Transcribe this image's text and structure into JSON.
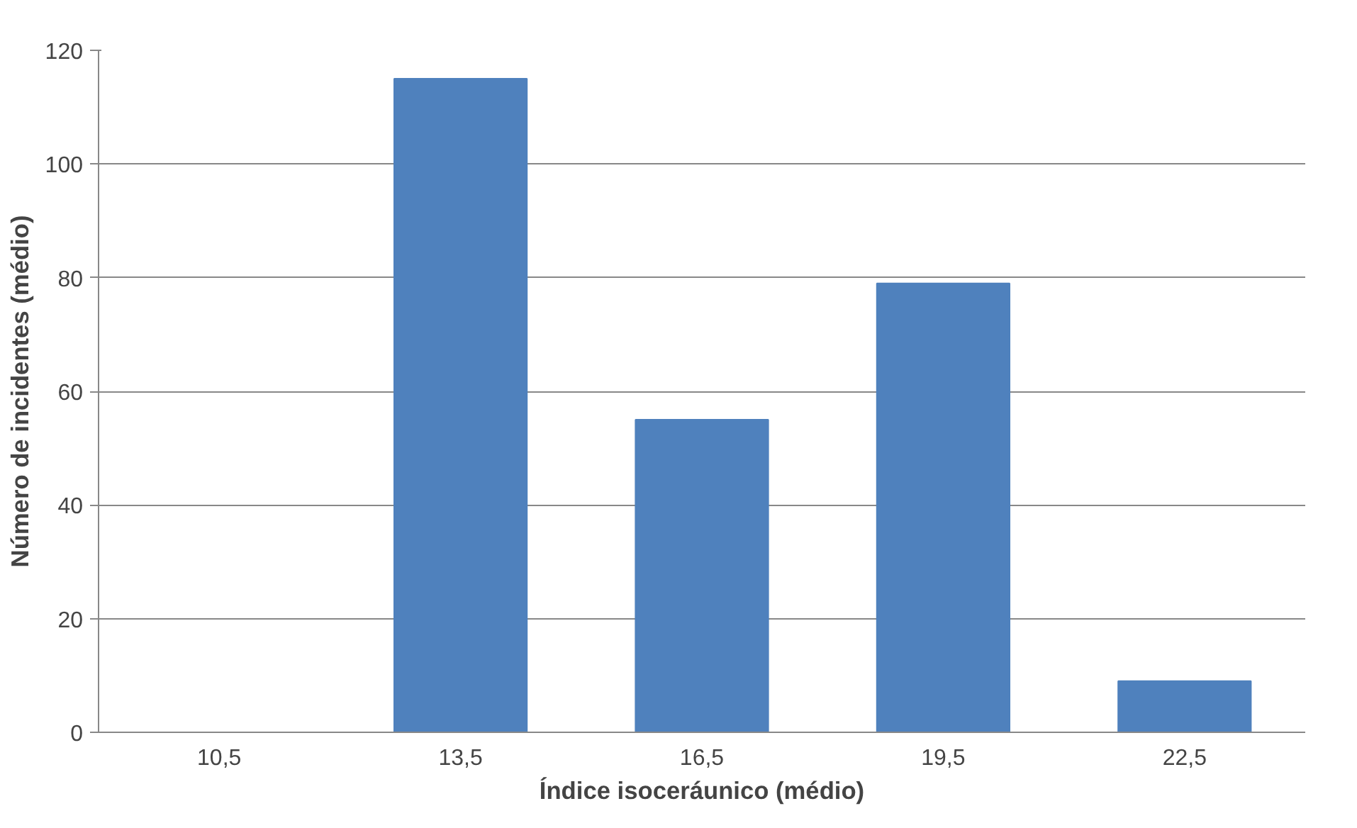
{
  "chart_data": {
    "type": "bar",
    "xlabel": "Índice isoceráunico (médio)",
    "ylabel": "Número de incidentes (médio)",
    "categories": [
      "10,5",
      "13,5",
      "16,5",
      "19,5",
      "22,5"
    ],
    "values": [
      0,
      115,
      55,
      79,
      9
    ],
    "color": "#4f81bd",
    "ylim": [
      0,
      120
    ],
    "yticks": [
      0,
      20,
      40,
      60,
      80,
      100,
      120
    ],
    "grid": "y"
  }
}
